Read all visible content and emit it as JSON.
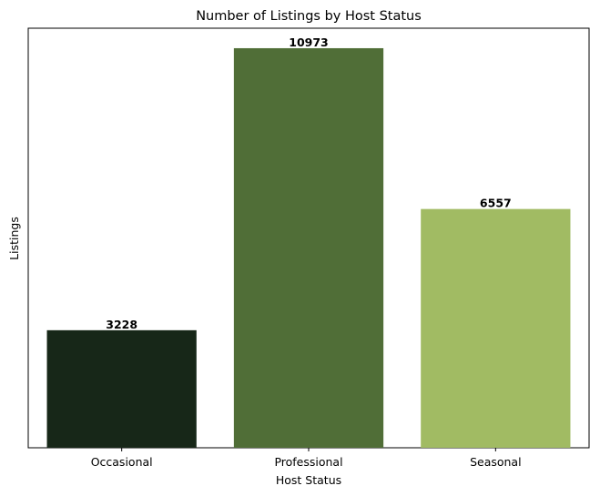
{
  "chart_data": {
    "type": "bar",
    "title": "Number of Listings by Host Status",
    "xlabel": "Host Status",
    "ylabel": "Listings",
    "categories": [
      "Occasional",
      "Professional",
      "Seasonal"
    ],
    "values": [
      3228,
      10973,
      6557
    ],
    "data_labels": [
      "3228",
      "10973",
      "6557"
    ],
    "colors": [
      "#172718",
      "#506e37",
      "#a1bb63"
    ],
    "ylim": [
      0,
      11522
    ],
    "y_ticks_visible": false,
    "grid": false,
    "legend": "none"
  }
}
